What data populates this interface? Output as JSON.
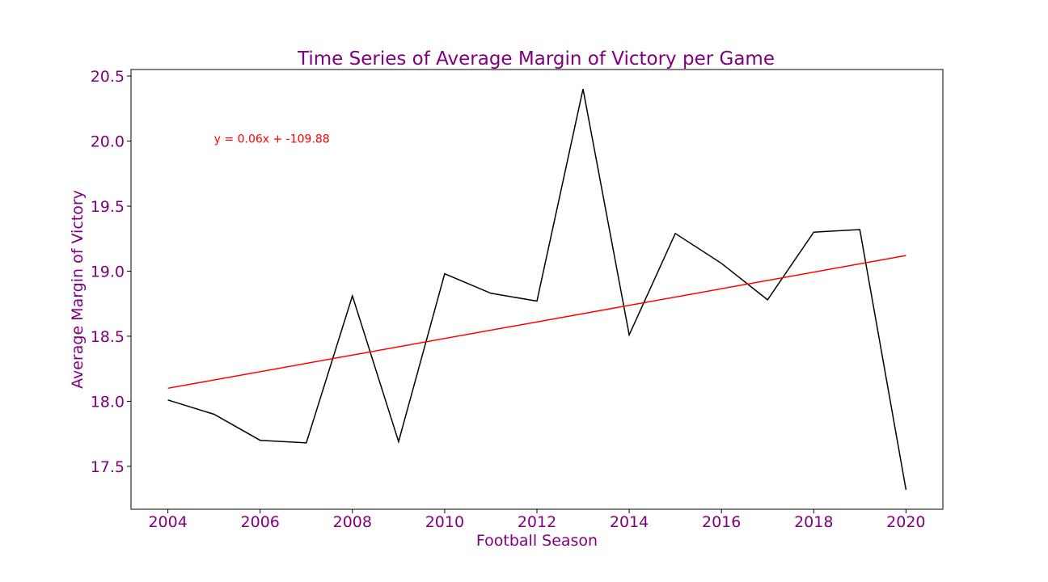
{
  "chart_data": {
    "type": "line",
    "title": "Time Series of Average Margin of Victory per Game",
    "xlabel": "Football Season",
    "ylabel": "Average Margin of Victory",
    "x": [
      2004,
      2005,
      2006,
      2007,
      2008,
      2009,
      2010,
      2011,
      2012,
      2013,
      2014,
      2015,
      2016,
      2017,
      2018,
      2019,
      2020
    ],
    "series": [
      {
        "values": [
          18.01,
          17.9,
          17.7,
          17.68,
          18.81,
          17.69,
          18.98,
          18.83,
          18.77,
          20.4,
          18.51,
          19.29,
          19.06,
          18.78,
          19.3,
          19.32,
          17.32
        ]
      }
    ],
    "trendline": {
      "x": [
        2004,
        2020
      ],
      "values": [
        18.1,
        19.12
      ]
    },
    "annotation": {
      "text": "y = 0.06x + -109.88",
      "x": 2005,
      "y": 20.0
    },
    "xticks": [
      2004,
      2006,
      2008,
      2010,
      2012,
      2014,
      2016,
      2018,
      2020
    ],
    "yticks": [
      "17.5",
      "18.0",
      "18.5",
      "19.0",
      "19.5",
      "20.0",
      "20.5"
    ],
    "xlim": [
      2003.2,
      2020.8
    ],
    "ylim": [
      17.17,
      20.55
    ],
    "grid": false,
    "colors": {
      "text": "#800080",
      "series_line": "#000000",
      "trend_line": "#ff0000",
      "annotation": "#ff0000",
      "axes": "#000000"
    }
  }
}
